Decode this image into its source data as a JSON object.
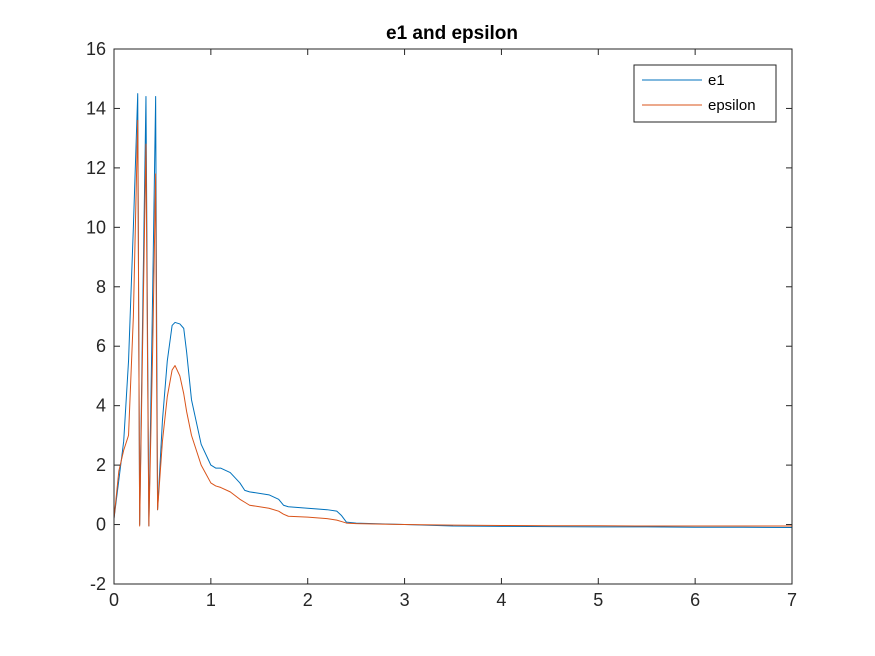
{
  "chart_data": {
    "type": "line",
    "title": "e1 and epsilon",
    "xlabel": "",
    "ylabel": "",
    "xlim": [
      0,
      7
    ],
    "ylim": [
      -2,
      16
    ],
    "xticks": [
      0,
      1,
      2,
      3,
      4,
      5,
      6,
      7
    ],
    "yticks": [
      -2,
      0,
      2,
      4,
      6,
      8,
      10,
      12,
      14,
      16
    ],
    "grid": false,
    "legend_position": "top-right",
    "series": [
      {
        "name": "e1",
        "color": "#0072BD",
        "x": [
          0,
          0.05,
          0.1,
          0.15,
          0.2,
          0.245,
          0.255,
          0.265,
          0.3,
          0.33,
          0.345,
          0.36,
          0.4,
          0.43,
          0.44,
          0.45,
          0.5,
          0.55,
          0.6,
          0.63,
          0.68,
          0.72,
          0.75,
          0.8,
          0.9,
          1.0,
          1.05,
          1.1,
          1.2,
          1.3,
          1.35,
          1.4,
          1.6,
          1.7,
          1.75,
          1.8,
          2.0,
          2.2,
          2.3,
          2.35,
          2.4,
          2.5,
          3.0,
          3.5,
          4.0,
          4.5,
          5.0,
          5.5,
          6.0,
          6.5,
          7.0
        ],
        "y": [
          0.2,
          1.5,
          2.8,
          5.5,
          10.0,
          14.5,
          7.0,
          0.0,
          8.0,
          14.4,
          7.0,
          -0.05,
          8.0,
          14.4,
          7.0,
          0.5,
          3.5,
          5.5,
          6.7,
          6.8,
          6.75,
          6.6,
          5.8,
          4.2,
          2.7,
          2.0,
          1.9,
          1.9,
          1.75,
          1.4,
          1.15,
          1.1,
          1.0,
          0.85,
          0.65,
          0.6,
          0.55,
          0.5,
          0.45,
          0.3,
          0.08,
          0.05,
          0.0,
          -0.05,
          -0.06,
          -0.07,
          -0.08,
          -0.08,
          -0.09,
          -0.09,
          -0.1
        ]
      },
      {
        "name": "epsilon",
        "color": "#D95319",
        "x": [
          0,
          0.05,
          0.1,
          0.15,
          0.2,
          0.245,
          0.255,
          0.265,
          0.3,
          0.33,
          0.345,
          0.36,
          0.4,
          0.43,
          0.44,
          0.45,
          0.5,
          0.55,
          0.6,
          0.63,
          0.68,
          0.72,
          0.75,
          0.8,
          0.9,
          1.0,
          1.05,
          1.1,
          1.2,
          1.3,
          1.35,
          1.4,
          1.6,
          1.7,
          1.75,
          1.8,
          2.0,
          2.2,
          2.3,
          2.35,
          2.4,
          2.5,
          3.0,
          3.5,
          4.0,
          4.5,
          5.0,
          5.5,
          6.0,
          6.5,
          7.0
        ],
        "y": [
          0.2,
          1.8,
          2.5,
          3.0,
          7.0,
          13.6,
          7.0,
          -0.05,
          7.0,
          12.8,
          6.0,
          -0.05,
          6.0,
          11.8,
          5.0,
          0.5,
          2.8,
          4.3,
          5.2,
          5.35,
          5.0,
          4.4,
          3.8,
          3.0,
          2.0,
          1.4,
          1.3,
          1.25,
          1.1,
          0.85,
          0.75,
          0.65,
          0.55,
          0.45,
          0.35,
          0.28,
          0.25,
          0.2,
          0.15,
          0.1,
          0.05,
          0.03,
          0.0,
          -0.02,
          -0.03,
          -0.04,
          -0.04,
          -0.05,
          -0.05,
          -0.05,
          -0.05
        ]
      }
    ]
  }
}
